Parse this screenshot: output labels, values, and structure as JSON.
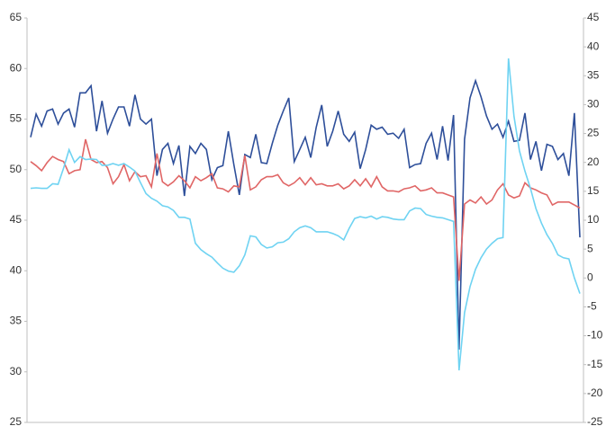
{
  "chart_data": {
    "type": "line",
    "ylim": [
      25,
      65
    ],
    "yticks": [
      25,
      30,
      35,
      40,
      45,
      50,
      55,
      60,
      65
    ],
    "y2lim": [
      -25,
      45
    ],
    "y2ticks": [
      -25,
      -20,
      -15,
      -10,
      -5,
      0,
      5,
      10,
      15,
      20,
      25,
      30,
      35,
      40,
      45
    ],
    "series": [
      {
        "color": "#2e4f9a",
        "values": [
          53.2,
          55.5,
          54.3,
          55.8,
          56,
          54.5,
          55.6,
          56,
          54.2,
          57.6,
          57.6,
          58.3,
          53.8,
          56.8,
          53.6,
          55,
          56.2,
          56.2,
          54.3,
          57.4,
          55,
          54.5,
          55,
          49.4,
          52,
          52.6,
          50.6,
          52.4,
          47.4,
          52.3,
          51.6,
          52.6,
          52,
          49,
          50.2,
          50.4,
          53.8,
          50.5,
          47.5,
          51.5,
          51.2,
          53.5,
          50.7,
          50.6,
          52.6,
          54.4,
          55.8,
          57.1,
          50.8,
          52,
          53.2,
          51.2,
          54.2,
          56.4,
          52.3,
          53.8,
          55.8,
          53.5,
          52.8,
          53.7,
          50.1,
          52,
          54.4,
          54,
          54.2,
          53.5,
          53.6,
          53.1,
          54,
          50.2,
          50.5,
          50.6,
          52.6,
          53.6,
          51,
          54.3,
          50.9,
          55.4,
          32.2,
          53,
          57.1,
          58.8,
          57.2,
          55.3,
          54,
          54.5,
          53.2,
          54.8,
          52.8,
          52.9,
          55.6,
          51,
          52.8,
          49.9,
          52.5,
          52.3,
          51,
          51.6,
          49.4,
          55.6,
          43.3
        ]
      },
      {
        "color": "#e06666",
        "values": [
          50.8,
          50.4,
          49.9,
          50.7,
          51.3,
          51,
          50.8,
          49.6,
          49.9,
          50,
          53,
          51,
          50.7,
          50.8,
          50.2,
          48.6,
          49.3,
          50.5,
          48.9,
          49.8,
          49.3,
          49.4,
          48.3,
          51.6,
          48.8,
          48.4,
          48.8,
          49.4,
          48.9,
          48.2,
          49.3,
          48.9,
          49.2,
          49.6,
          48.2,
          48.1,
          47.8,
          48.4,
          48.3,
          51.4,
          48,
          48.3,
          49,
          49.3,
          49.3,
          49.5,
          48.7,
          48.4,
          48.7,
          49.2,
          48.5,
          49.2,
          48.5,
          48.6,
          48.4,
          48.4,
          48.6,
          48.1,
          48.4,
          49,
          48.4,
          49.1,
          48.3,
          49.3,
          48.3,
          47.9,
          47.9,
          47.8,
          48.1,
          48.2,
          48.4,
          47.9,
          48,
          48.2,
          47.7,
          47.7,
          47.5,
          47.3,
          39,
          46.6,
          47,
          46.7,
          47.3,
          46.6,
          47,
          48,
          48.6,
          47.5,
          47.2,
          47.4,
          48.7,
          48.2,
          48,
          47.7,
          47.5,
          46.5,
          46.8,
          46.8,
          46.8,
          46.5,
          46.2
        ]
      },
      {
        "color": "#6fd3f2",
        "axis": "y2",
        "values": [
          15.5,
          15.6,
          15.5,
          15.5,
          16.3,
          16.2,
          19,
          22.2,
          20,
          21,
          20.5,
          20.6,
          20.5,
          19.5,
          19.5,
          19.8,
          19.5,
          19.8,
          19.2,
          18.5,
          16.5,
          14.6,
          13.8,
          13.3,
          12.5,
          12.3,
          11.7,
          10.5,
          10.5,
          10.2,
          6,
          4.9,
          4.2,
          3.6,
          2.6,
          1.7,
          1.2,
          1,
          2.1,
          4,
          7.3,
          7.1,
          5.8,
          5.2,
          5.4,
          6.1,
          6.2,
          6.8,
          8,
          8.7,
          9,
          8.7,
          8,
          8,
          8,
          7.7,
          7.3,
          6.6,
          8.6,
          10.3,
          10.6,
          10.4,
          10.7,
          10.2,
          10.6,
          10.5,
          10.2,
          10.1,
          10.1,
          11.6,
          12.1,
          12,
          11,
          10.7,
          10.5,
          10.4,
          10.1,
          9.8,
          -16,
          -6,
          -1.5,
          1.5,
          3.5,
          5,
          6,
          6.8,
          7,
          38,
          28,
          22,
          18.5,
          15.5,
          12,
          9.5,
          7.5,
          6,
          4,
          3.5,
          3.3,
          0,
          -2.7
        ]
      }
    ]
  }
}
